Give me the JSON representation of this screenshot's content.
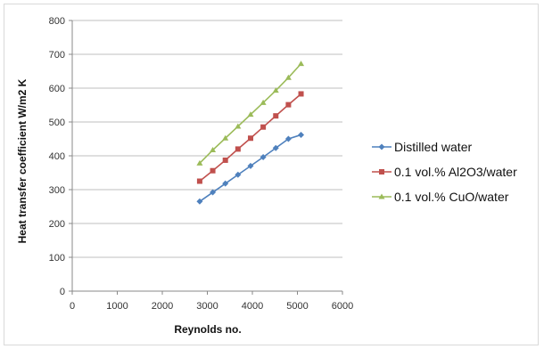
{
  "chart_data": {
    "type": "line",
    "title": "",
    "xlabel": "Reynolds no.",
    "ylabel": "Heat transfer coefficient W/m2 K",
    "xlim": [
      0,
      6000
    ],
    "ylim": [
      0,
      800
    ],
    "x_ticks": [
      "0",
      "1000",
      "2000",
      "3000",
      "4000",
      "5000",
      "6000"
    ],
    "y_ticks": [
      "0",
      "100",
      "200",
      "300",
      "400",
      "500",
      "600",
      "700",
      "800"
    ],
    "grid": "horizontal",
    "legend_position": "right",
    "x": [
      2830,
      3120,
      3400,
      3680,
      3960,
      4240,
      4520,
      4800,
      5080
    ],
    "series": [
      {
        "name": "Distilled water",
        "color": "#4f81bd",
        "marker": "diamond",
        "values": [
          265,
          292,
          318,
          344,
          370,
          396,
          423,
          450,
          462
        ]
      },
      {
        "name": "0.1 vol.% Al2O3/water",
        "color": "#c0504d",
        "marker": "square",
        "values": [
          325,
          356,
          387,
          420,
          452,
          485,
          518,
          551,
          583
        ]
      },
      {
        "name": "0.1 vol.% CuO/water",
        "color": "#9bbb59",
        "marker": "triangle",
        "values": [
          378,
          417,
          452,
          487,
          522,
          557,
          593,
          631,
          672
        ]
      }
    ]
  }
}
